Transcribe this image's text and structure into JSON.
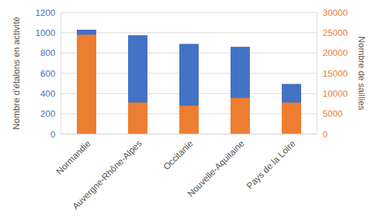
{
  "chart_data": {
    "type": "bar",
    "categories": [
      "Normandie",
      "Auvergne-Rhône-Alpes",
      "Occitanie",
      "Nouvelle-Aquitaine",
      "Pays de la Loire"
    ],
    "series": [
      {
        "color": "#4472c4",
        "values": [
          1030,
          975,
          890,
          860,
          495
        ]
      },
      {
        "color": "#ed7d31",
        "values": [
          24500,
          7750,
          7000,
          8900,
          7750
        ],
        "axis": "y2"
      }
    ],
    "ylabel": "Nombre d'étalons en activité",
    "y2label": "Nombre de saillies",
    "ylim": [
      0,
      1200
    ],
    "yticks": [
      0,
      200,
      400,
      600,
      800,
      1000,
      1200
    ],
    "y2lim": [
      0,
      30000
    ],
    "y2ticks": [
      0,
      5000,
      10000,
      15000,
      20000,
      25000,
      30000
    ],
    "grid": true
  }
}
